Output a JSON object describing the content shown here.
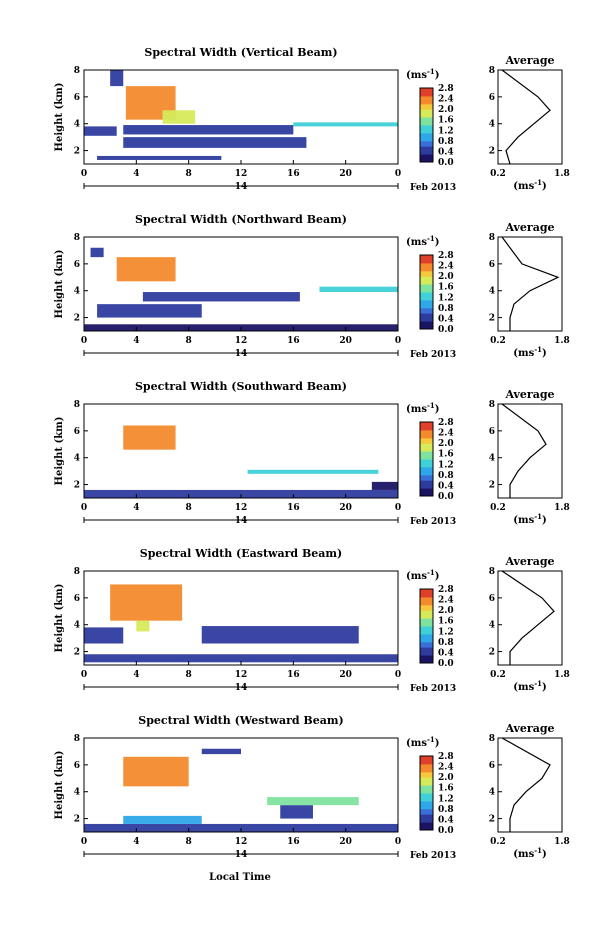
{
  "figure": {
    "x_axis_label": "Local Time",
    "date_label": "Feb 2013",
    "day_label": "14",
    "colorbar_unit_base": "(ms",
    "colorbar_unit_exp": "-1",
    "colorbar_unit_close": ")",
    "avg_title": "Average",
    "avg_xlabel_base": "(ms",
    "avg_xlabel_exp": "-1",
    "avg_xlabel_close": ")",
    "height_label": "Height (km)"
  },
  "chart_data": [
    {
      "type": "heatmap",
      "title": "Spectral Width (Vertical Beam)",
      "ylabel": "Height (km)",
      "xlim": [
        0,
        24
      ],
      "ylim": [
        1,
        8
      ],
      "x_ticks": [
        "0",
        "4",
        "8",
        "12",
        "16",
        "20",
        "0"
      ],
      "y_ticks": [
        "2",
        "4",
        "6",
        "8"
      ],
      "colorbar_ticks": [
        "0.0",
        "0.4",
        "0.8",
        "1.2",
        "1.6",
        "2.0",
        "2.4",
        "2.8"
      ],
      "clim": [
        0,
        2.8
      ],
      "regions": [
        {
          "t0": 1.0,
          "t1": 10.5,
          "h0": 1.3,
          "h1": 1.6,
          "v": 0.5
        },
        {
          "t0": 3.0,
          "t1": 17.0,
          "h0": 2.2,
          "h1": 3.0,
          "v": 0.3
        },
        {
          "t0": 0.0,
          "t1": 2.5,
          "h0": 3.1,
          "h1": 3.8,
          "v": 0.3
        },
        {
          "t0": 3.0,
          "t1": 16.0,
          "h0": 3.2,
          "h1": 3.9,
          "v": 0.4
        },
        {
          "t0": 16.0,
          "t1": 24.0,
          "h0": 3.8,
          "h1": 4.1,
          "v": 1.2
        },
        {
          "t0": 3.2,
          "t1": 7.0,
          "h0": 4.3,
          "h1": 6.8,
          "v": 2.4
        },
        {
          "t0": 6.0,
          "t1": 8.5,
          "h0": 4.0,
          "h1": 5.0,
          "v": 1.8
        },
        {
          "t0": 2.0,
          "t1": 3.0,
          "h0": 6.8,
          "h1": 8.0,
          "v": 0.3
        }
      ],
      "avg_profile": {
        "x": [
          0.5,
          0.4,
          0.7,
          1.1,
          1.5,
          1.2,
          0.3
        ],
        "height": [
          1,
          2,
          3,
          4,
          5,
          6,
          8
        ],
        "xlim": [
          0.2,
          1.8
        ],
        "x_ticks": [
          "0.2",
          "1.8"
        ],
        "y_ticks": [
          "2",
          "4",
          "6",
          "8"
        ]
      }
    },
    {
      "type": "heatmap",
      "title": "Spectral Width (Northward Beam)",
      "ylabel": "Height (km)",
      "xlim": [
        0,
        24
      ],
      "ylim": [
        1,
        8
      ],
      "x_ticks": [
        "0",
        "4",
        "8",
        "12",
        "16",
        "20",
        "0"
      ],
      "y_ticks": [
        "2",
        "4",
        "6",
        "8"
      ],
      "colorbar_ticks": [
        "0.0",
        "0.4",
        "0.8",
        "1.2",
        "1.6",
        "2.0",
        "2.4",
        "2.8"
      ],
      "clim": [
        0,
        2.8
      ],
      "regions": [
        {
          "t0": 0.0,
          "t1": 24.0,
          "h0": 1.0,
          "h1": 1.5,
          "v": 0.2
        },
        {
          "t0": 1.0,
          "t1": 9.0,
          "h0": 2.0,
          "h1": 3.0,
          "v": 0.3
        },
        {
          "t0": 4.5,
          "t1": 16.5,
          "h0": 3.2,
          "h1": 3.9,
          "v": 0.4
        },
        {
          "t0": 18.0,
          "t1": 24.0,
          "h0": 3.9,
          "h1": 4.3,
          "v": 1.2
        },
        {
          "t0": 2.5,
          "t1": 7.0,
          "h0": 4.7,
          "h1": 6.5,
          "v": 2.3
        },
        {
          "t0": 0.5,
          "t1": 1.5,
          "h0": 6.5,
          "h1": 7.2,
          "v": 0.4
        }
      ],
      "avg_profile": {
        "x": [
          0.5,
          0.5,
          0.6,
          1.0,
          1.7,
          0.8,
          0.3
        ],
        "height": [
          1,
          2,
          3,
          4,
          5,
          6,
          8
        ],
        "xlim": [
          0.2,
          1.8
        ],
        "x_ticks": [
          "0.2",
          "1.8"
        ],
        "y_ticks": [
          "2",
          "4",
          "6",
          "8"
        ]
      }
    },
    {
      "type": "heatmap",
      "title": "Spectral Width (Southward Beam)",
      "ylabel": "Height (km)",
      "xlim": [
        0,
        24
      ],
      "ylim": [
        1,
        8
      ],
      "x_ticks": [
        "0",
        "4",
        "8",
        "12",
        "16",
        "20",
        "0"
      ],
      "y_ticks": [
        "2",
        "4",
        "6",
        "8"
      ],
      "colorbar_ticks": [
        "0.0",
        "0.4",
        "0.8",
        "1.2",
        "1.6",
        "2.0",
        "2.4",
        "2.8"
      ],
      "clim": [
        0,
        2.8
      ],
      "regions": [
        {
          "t0": 0.0,
          "t1": 24.0,
          "h0": 1.0,
          "h1": 1.6,
          "v": 0.3
        },
        {
          "t0": 22.0,
          "t1": 24.0,
          "h0": 1.6,
          "h1": 2.2,
          "v": 0.2
        },
        {
          "t0": 12.5,
          "t1": 22.5,
          "h0": 2.8,
          "h1": 3.1,
          "v": 1.3
        },
        {
          "t0": 3.0,
          "t1": 7.0,
          "h0": 4.6,
          "h1": 6.4,
          "v": 2.3
        }
      ],
      "avg_profile": {
        "x": [
          0.5,
          0.5,
          0.7,
          1.0,
          1.4,
          1.2,
          0.3
        ],
        "height": [
          1,
          2,
          3,
          4,
          5,
          6,
          8
        ],
        "xlim": [
          0.2,
          1.8
        ],
        "x_ticks": [
          "0.2",
          "1.8"
        ],
        "y_ticks": [
          "2",
          "4",
          "6",
          "8"
        ]
      }
    },
    {
      "type": "heatmap",
      "title": "Spectral Width (Eastward Beam)",
      "ylabel": "Height (km)",
      "xlim": [
        0,
        24
      ],
      "ylim": [
        1,
        8
      ],
      "x_ticks": [
        "0",
        "4",
        "8",
        "12",
        "16",
        "20",
        "0"
      ],
      "y_ticks": [
        "2",
        "4",
        "6",
        "8"
      ],
      "colorbar_ticks": [
        "0.0",
        "0.4",
        "0.8",
        "1.2",
        "1.6",
        "2.0",
        "2.4",
        "2.8"
      ],
      "clim": [
        0,
        2.8
      ],
      "regions": [
        {
          "t0": 0.0,
          "t1": 24.0,
          "h0": 1.2,
          "h1": 1.8,
          "v": 0.4
        },
        {
          "t0": 0.0,
          "t1": 3.0,
          "h0": 2.6,
          "h1": 3.8,
          "v": 0.3
        },
        {
          "t0": 9.0,
          "t1": 21.0,
          "h0": 2.6,
          "h1": 3.9,
          "v": 0.3
        },
        {
          "t0": 2.0,
          "t1": 7.5,
          "h0": 4.3,
          "h1": 7.0,
          "v": 2.4
        },
        {
          "t0": 4.0,
          "t1": 5.0,
          "h0": 3.5,
          "h1": 4.3,
          "v": 1.8
        }
      ],
      "avg_profile": {
        "x": [
          0.5,
          0.5,
          0.8,
          1.2,
          1.6,
          1.3,
          0.3
        ],
        "height": [
          1,
          2,
          3,
          4,
          5,
          6,
          8
        ],
        "xlim": [
          0.2,
          1.8
        ],
        "x_ticks": [
          "0.2",
          "1.8"
        ],
        "y_ticks": [
          "2",
          "4",
          "6",
          "8"
        ]
      }
    },
    {
      "type": "heatmap",
      "title": "Spectral Width (Westward Beam)",
      "ylabel": "Height (km)",
      "xlim": [
        0,
        24
      ],
      "ylim": [
        1,
        8
      ],
      "x_ticks": [
        "0",
        "4",
        "8",
        "12",
        "16",
        "20",
        "0"
      ],
      "y_ticks": [
        "2",
        "4",
        "6",
        "8"
      ],
      "colorbar_ticks": [
        "0.0",
        "0.4",
        "0.8",
        "1.2",
        "1.6",
        "2.0",
        "2.4",
        "2.8"
      ],
      "clim": [
        0,
        2.8
      ],
      "regions": [
        {
          "t0": 0.0,
          "t1": 24.0,
          "h0": 1.0,
          "h1": 1.6,
          "v": 0.3
        },
        {
          "t0": 3.0,
          "t1": 9.0,
          "h0": 1.6,
          "h1": 2.2,
          "v": 1.0
        },
        {
          "t0": 15.0,
          "t1": 17.5,
          "h0": 2.0,
          "h1": 3.0,
          "v": 0.3
        },
        {
          "t0": 14.0,
          "t1": 21.0,
          "h0": 3.0,
          "h1": 3.6,
          "v": 1.4
        },
        {
          "t0": 3.0,
          "t1": 8.0,
          "h0": 4.4,
          "h1": 6.6,
          "v": 2.3
        },
        {
          "t0": 9.0,
          "t1": 12.0,
          "h0": 6.8,
          "h1": 7.2,
          "v": 0.3
        }
      ],
      "avg_profile": {
        "x": [
          0.5,
          0.5,
          0.6,
          0.9,
          1.3,
          1.5,
          0.3
        ],
        "height": [
          1,
          2,
          3,
          4,
          5,
          6,
          8
        ],
        "xlim": [
          0.2,
          1.8
        ],
        "x_ticks": [
          "0.2",
          "1.8"
        ],
        "y_ticks": [
          "2",
          "4",
          "6",
          "8"
        ]
      }
    }
  ]
}
